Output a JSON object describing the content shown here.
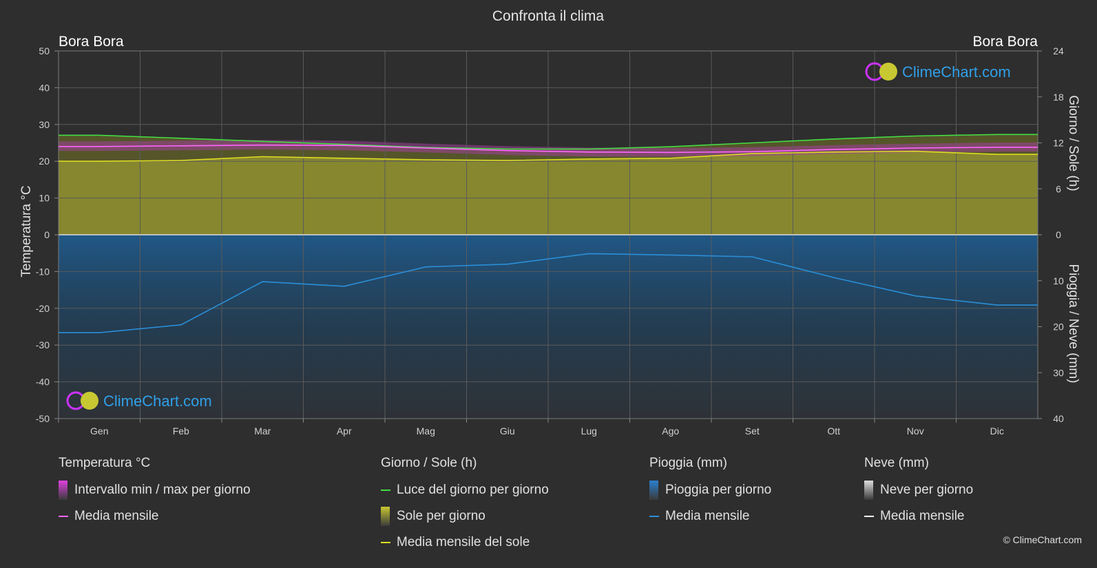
{
  "chart_data": {
    "type": "area",
    "title": "Confronta il clima",
    "location_left": "Bora Bora",
    "location_right": "Bora Bora",
    "watermark": "ClimeChart.com",
    "copyright": "© ClimeChart.com",
    "categories": [
      "Gen",
      "Feb",
      "Mar",
      "Apr",
      "Mag",
      "Giu",
      "Lug",
      "Ago",
      "Set",
      "Ott",
      "Nov",
      "Dic"
    ],
    "y_left": {
      "label": "Temperatura °C",
      "ylim": [
        -50,
        50
      ],
      "ticks": [
        50,
        40,
        30,
        20,
        10,
        0,
        -10,
        -20,
        -30,
        -40,
        -50
      ]
    },
    "y_right_top": {
      "label": "Giorno / Sole (h)",
      "ylim": [
        0,
        24
      ],
      "ticks": [
        24,
        18,
        12,
        6,
        0
      ]
    },
    "y_right_bottom": {
      "label": "Pioggia / Neve (mm)",
      "ylim": [
        0,
        40
      ],
      "ticks": [
        0,
        10,
        20,
        30,
        40
      ]
    },
    "series": [
      {
        "name": "Luce del giorno per giorno",
        "axis": "sun_h",
        "color": "#44dd44",
        "values": [
          13.0,
          12.6,
          12.2,
          11.8,
          11.4,
          11.2,
          11.2,
          11.5,
          12.0,
          12.5,
          12.9,
          13.1
        ]
      },
      {
        "name": "Media mensile",
        "group": "temperature",
        "axis": "temp_c",
        "color": "#ff66ff",
        "values": [
          24.0,
          24.2,
          24.4,
          24.3,
          23.6,
          22.9,
          22.5,
          22.4,
          22.6,
          23.2,
          23.6,
          23.8
        ]
      },
      {
        "name": "Intervallo min / max per giorno",
        "axis": "temp_c",
        "color": "#cc33cc",
        "min": [
          22.8,
          23.0,
          23.2,
          23.0,
          22.4,
          21.7,
          21.3,
          21.2,
          21.4,
          22.0,
          22.4,
          22.6
        ],
        "max": [
          25.4,
          25.6,
          25.8,
          25.6,
          24.8,
          24.1,
          23.7,
          23.6,
          23.8,
          24.4,
          24.8,
          25.1
        ]
      },
      {
        "name": "Media mensile del sole",
        "axis": "sun_h",
        "color": "#dddd22",
        "values": [
          9.6,
          9.7,
          10.2,
          10.0,
          9.8,
          9.7,
          9.9,
          10.0,
          10.6,
          10.8,
          10.9,
          10.5
        ]
      },
      {
        "name": "Media mensile",
        "group": "rain",
        "axis": "rain_mm",
        "color": "#2a8fd8",
        "values": [
          21.3,
          19.6,
          10.2,
          11.2,
          7.0,
          6.4,
          4.1,
          4.4,
          4.8,
          9.3,
          13.3,
          15.3
        ]
      },
      {
        "name": "Media mensile",
        "group": "snow",
        "axis": "rain_mm",
        "color": "#ffffff",
        "values": [
          0,
          0,
          0,
          0,
          0,
          0,
          0,
          0,
          0,
          0,
          0,
          0
        ]
      }
    ],
    "legend": {
      "groups": [
        {
          "title": "Temperatura °C",
          "items": [
            {
              "label": "Intervallo min / max per giorno",
              "kind": "box",
              "color": "#e040e0"
            },
            {
              "label": "Media mensile",
              "kind": "line",
              "color": "#ff66ff"
            }
          ]
        },
        {
          "title": "Giorno / Sole (h)",
          "items": [
            {
              "label": "Luce del giorno per giorno",
              "kind": "line",
              "color": "#44dd44"
            },
            {
              "label": "Sole per giorno",
              "kind": "box",
              "color": "#c8c832"
            },
            {
              "label": "Media mensile del sole",
              "kind": "line",
              "color": "#dddd22"
            }
          ]
        },
        {
          "title": "Pioggia (mm)",
          "items": [
            {
              "label": "Pioggia per giorno",
              "kind": "box",
              "color": "#2a7fd0"
            },
            {
              "label": "Media mensile",
              "kind": "line",
              "color": "#2a8fd8"
            }
          ]
        },
        {
          "title": "Neve (mm)",
          "items": [
            {
              "label": "Neve per giorno",
              "kind": "box",
              "color": "#dddddd"
            },
            {
              "label": "Media mensile",
              "kind": "line",
              "color": "#ffffff"
            }
          ]
        }
      ]
    },
    "grid": true
  }
}
